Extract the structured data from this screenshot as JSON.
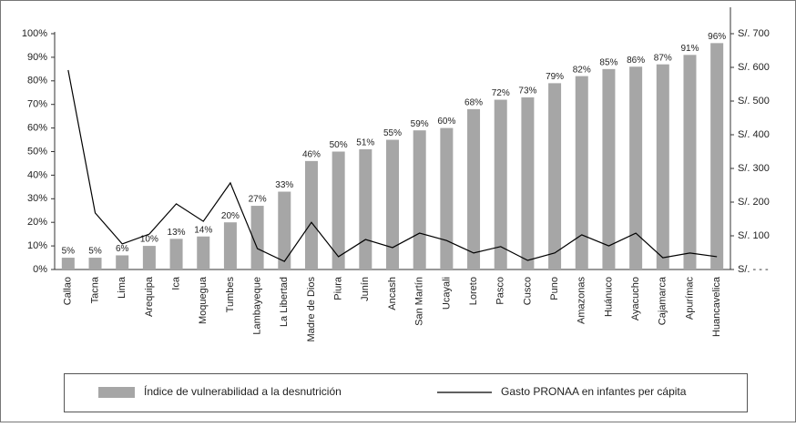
{
  "chart_data": {
    "type": "bar",
    "categories": [
      "Callao",
      "Tacna",
      "Lima",
      "Arequipa",
      "Ica",
      "Moquegua",
      "Tumbes",
      "Lambayeque",
      "La Libertad",
      "Madre de Dios",
      "Piura",
      "Junín",
      "Ancash",
      "San Martín",
      "Ucayali",
      "Loreto",
      "Pasco",
      "Cusco",
      "Puno",
      "Amazonas",
      "Huánuco",
      "Ayacucho",
      "Cajamarca",
      "Apurímac",
      "Huancavelica"
    ],
    "series": [
      {
        "name": "Índice de vulnerabilidad a la desnutrición",
        "type": "bar",
        "color": "#a6a6a6",
        "values": [
          5,
          5,
          6,
          10,
          13,
          14,
          20,
          27,
          33,
          46,
          50,
          51,
          55,
          59,
          60,
          68,
          72,
          73,
          79,
          82,
          85,
          86,
          87,
          91,
          96
        ],
        "value_labels": [
          "5%",
          "5%",
          "6%",
          "10%",
          "13%",
          "14%",
          "20%",
          "27%",
          "33%",
          "46%",
          "50%",
          "51%",
          "55%",
          "59%",
          "60%",
          "68%",
          "72%",
          "73%",
          "79%",
          "82%",
          "85%",
          "86%",
          "87%",
          "91%",
          "96%"
        ]
      },
      {
        "name": "Gasto PRONAA en infantes per cápita",
        "type": "line",
        "color": "#000000",
        "axis": "y2",
        "values": [
          592,
          168,
          76,
          105,
          195,
          143,
          257,
          62,
          24,
          140,
          38,
          89,
          65,
          108,
          86,
          49,
          68,
          27,
          49,
          103,
          70,
          108,
          35,
          49,
          38
        ]
      }
    ],
    "ylim": [
      0,
      100
    ],
    "yticks": [
      {
        "value": 0,
        "label": "0%"
      },
      {
        "value": 10,
        "label": "10%"
      },
      {
        "value": 20,
        "label": "20%"
      },
      {
        "value": 30,
        "label": "30%"
      },
      {
        "value": 40,
        "label": "40%"
      },
      {
        "value": 50,
        "label": "50%"
      },
      {
        "value": 60,
        "label": "60%"
      },
      {
        "value": 70,
        "label": "70%"
      },
      {
        "value": 80,
        "label": "80%"
      },
      {
        "value": 90,
        "label": "90%"
      },
      {
        "value": 100,
        "label": "100%"
      }
    ],
    "y2lim": [
      0,
      700
    ],
    "y2ticks": [
      {
        "value": 0,
        "label": "S/. - - -"
      },
      {
        "value": 100,
        "label": "S/. 100"
      },
      {
        "value": 200,
        "label": "S/. 200"
      },
      {
        "value": 300,
        "label": "S/. 300"
      },
      {
        "value": 400,
        "label": "S/. 400"
      },
      {
        "value": 500,
        "label": "S/. 500"
      },
      {
        "value": 600,
        "label": "S/. 600"
      },
      {
        "value": 700,
        "label": "S/. 700"
      }
    ],
    "legend": "bottom"
  }
}
